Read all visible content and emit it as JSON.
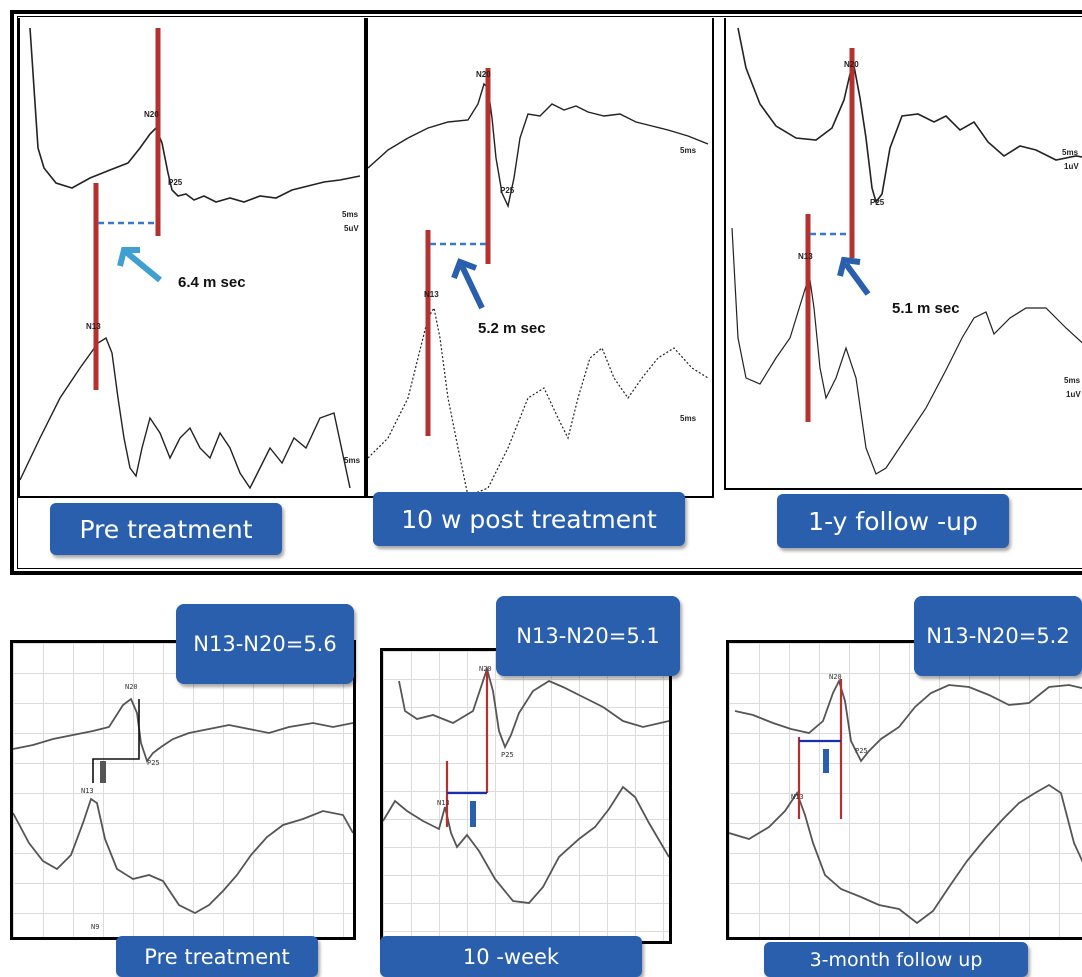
{
  "top_row": {
    "panels": [
      {
        "label": "Pre treatment",
        "latency": "6.4 m sec",
        "waves": {
          "n20": "N20",
          "p25": "P25",
          "n13": "N13"
        },
        "scale": [
          "5ms",
          "5uV"
        ],
        "scale_bottom": "5ms"
      },
      {
        "label": "10 w post treatment",
        "latency": "5.2 m sec",
        "waves": {
          "n20": "N20",
          "p25": "P25",
          "n13": "N13"
        },
        "scale": [
          "5ms"
        ],
        "scale_bottom": "5ms"
      },
      {
        "label": "1-y follow -up",
        "latency": "5.1 m sec",
        "waves": {
          "n20": "N20",
          "p25": "P25",
          "n13": "N13"
        },
        "scale": [
          "5ms",
          "1uV"
        ],
        "scale_bottom": [
          "5ms",
          "1uV"
        ]
      }
    ]
  },
  "bottom_row": {
    "panels": [
      {
        "label": "Pre treatment",
        "interval": "N13-N20=5.6",
        "waves": {
          "n20": "N20",
          "p25": "P25",
          "n13": "N13",
          "n9": "N9"
        }
      },
      {
        "label": "10 -week",
        "interval": "N13-N20=5.1",
        "waves": {
          "n20": "N20",
          "p25": "P25",
          "n13": "N13"
        }
      },
      {
        "label": "3-month follow up",
        "interval": "N13-N20=5.2",
        "waves": {
          "n20": "N20",
          "p25": "P25",
          "n13": "N13"
        }
      }
    ]
  },
  "colors": {
    "label_bg": "#2a5fae",
    "marker_red": "#b5312f",
    "dashed_blue": "#3a78c8",
    "arrow_blue": "#3f9fd0",
    "trace": "#222222"
  }
}
